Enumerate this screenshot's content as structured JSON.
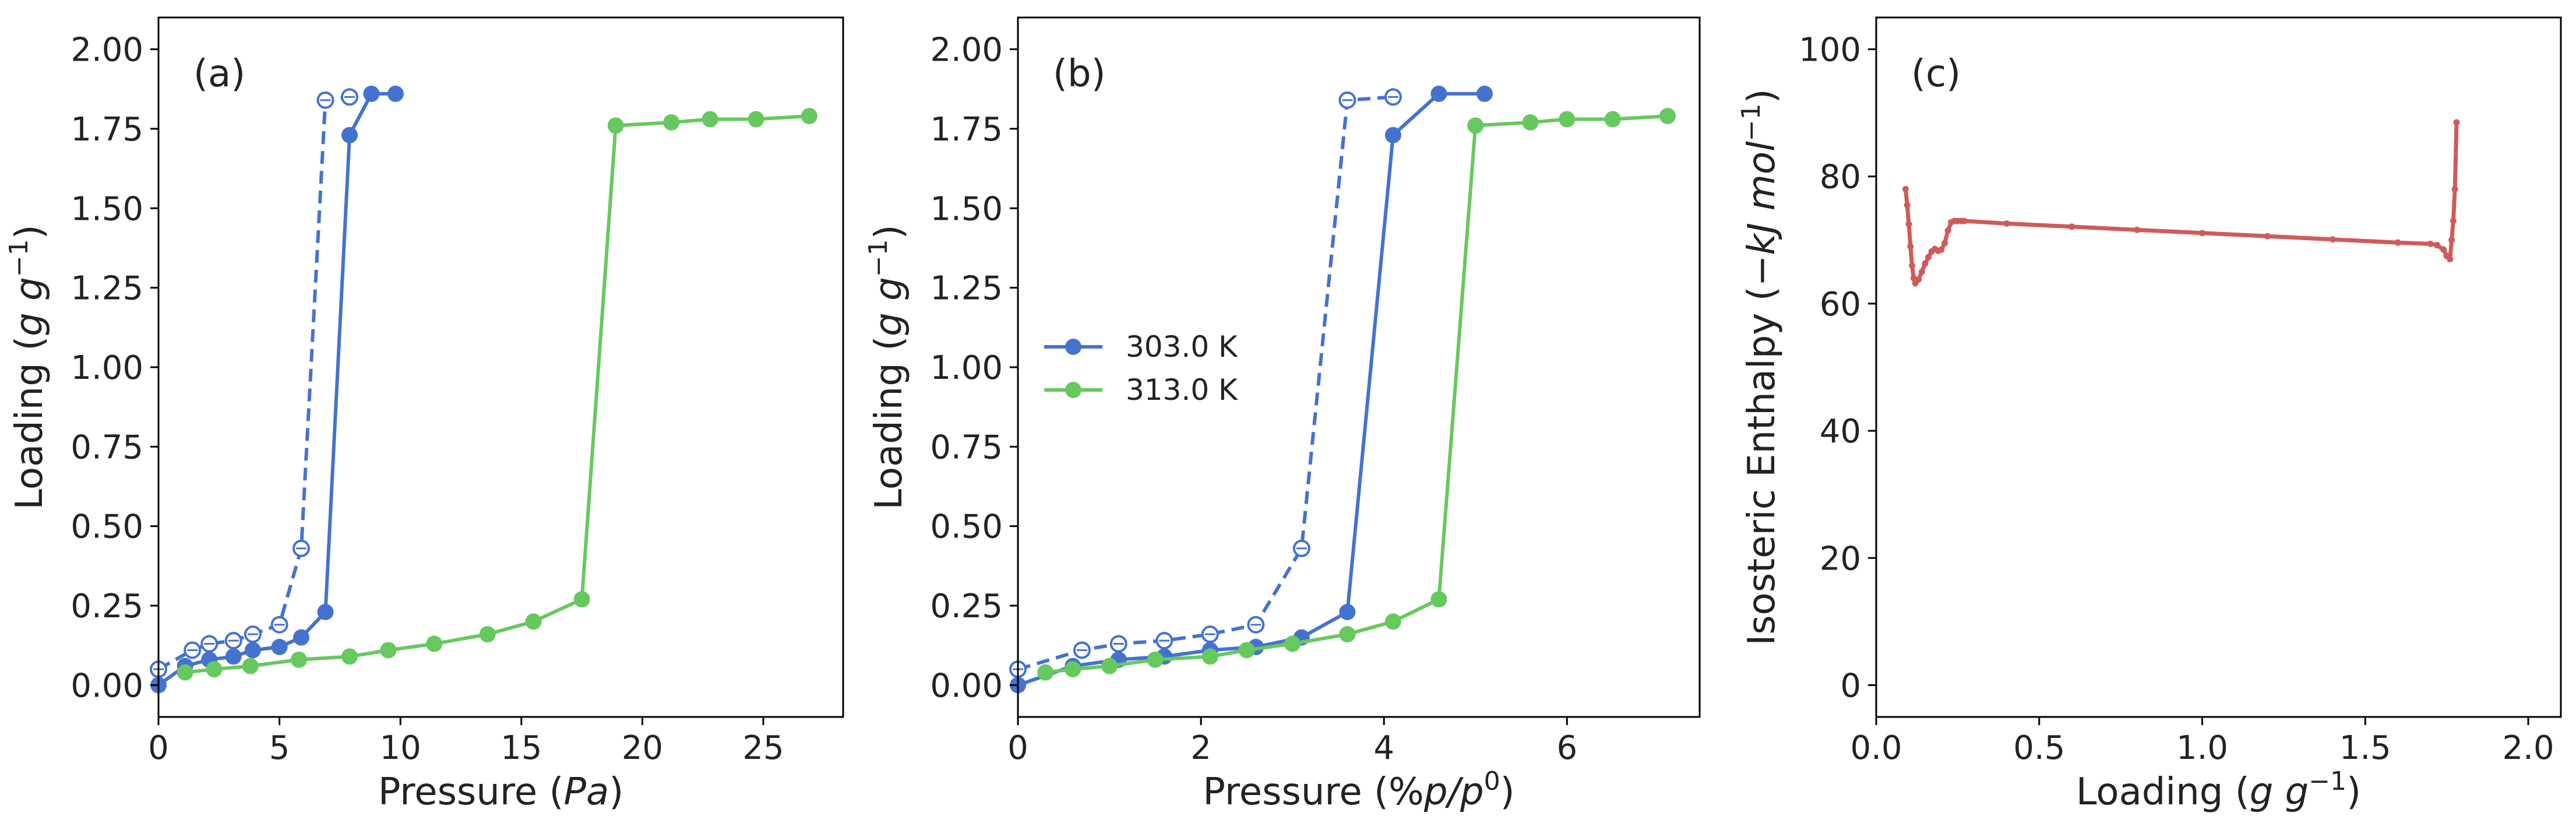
{
  "colors": {
    "blue": "#4472cf",
    "green": "#66c95e",
    "red": "#d05a5a",
    "axis": "#000000"
  },
  "chart_data": [
    {
      "type": "line",
      "panel_label": "(a)",
      "xlabel_parts": [
        "Pressure (",
        "Pa",
        ")"
      ],
      "ylabel_parts": [
        "Loading (",
        "g g",
        "−1",
        ")"
      ],
      "xlim": [
        0,
        28.3
      ],
      "ylim": [
        -0.1,
        2.1
      ],
      "xticks": [
        0,
        5,
        10,
        15,
        20,
        25
      ],
      "xtick_labels": [
        "0",
        "5",
        "10",
        "15",
        "20",
        "25"
      ],
      "yticks": [
        0,
        0.25,
        0.5,
        0.75,
        1.0,
        1.25,
        1.5,
        1.75,
        2.0
      ],
      "ytick_labels": [
        "0.00",
        "0.25",
        "0.50",
        "0.75",
        "1.00",
        "1.25",
        "1.50",
        "1.75",
        "2.00"
      ],
      "series": [
        {
          "name": "303.0 K",
          "color": "blue",
          "style": "solid",
          "marker": "filled",
          "x": [
            0.0,
            1.1,
            2.1,
            3.1,
            3.9,
            5.0,
            5.9,
            6.9,
            7.9,
            8.8,
            9.8
          ],
          "y": [
            0.0,
            0.06,
            0.08,
            0.09,
            0.11,
            0.12,
            0.15,
            0.23,
            1.73,
            1.86,
            1.86
          ]
        },
        {
          "name": "303.0 K desorption",
          "color": "blue",
          "style": "dashed",
          "marker": "open",
          "x": [
            0.0,
            1.4,
            2.1,
            3.1,
            3.9,
            5.0,
            5.9,
            6.9,
            7.9
          ],
          "y": [
            0.05,
            0.11,
            0.13,
            0.14,
            0.16,
            0.19,
            0.43,
            1.84,
            1.85
          ]
        },
        {
          "name": "313.0 K",
          "color": "green",
          "style": "solid",
          "marker": "filled",
          "x": [
            1.1,
            2.3,
            3.8,
            5.8,
            7.9,
            9.5,
            11.4,
            13.6,
            15.5,
            17.5,
            18.9,
            21.2,
            22.8,
            24.7,
            26.9
          ],
          "y": [
            0.04,
            0.05,
            0.06,
            0.08,
            0.09,
            0.11,
            0.13,
            0.16,
            0.2,
            0.27,
            1.76,
            1.77,
            1.78,
            1.78,
            1.79
          ]
        }
      ]
    },
    {
      "type": "line",
      "panel_label": "(b)",
      "xlabel_parts": [
        "Pressure (%",
        "p/p",
        "0",
        ")"
      ],
      "ylabel_parts": [
        "Loading (",
        "g g",
        "−1",
        ")"
      ],
      "xlim": [
        0,
        7.45
      ],
      "ylim": [
        -0.1,
        2.1
      ],
      "xticks": [
        0,
        2,
        4,
        6
      ],
      "xtick_labels": [
        "0",
        "2",
        "4",
        "6"
      ],
      "yticks": [
        0,
        0.25,
        0.5,
        0.75,
        1.0,
        1.25,
        1.5,
        1.75,
        2.0
      ],
      "ytick_labels": [
        "0.00",
        "0.25",
        "0.50",
        "0.75",
        "1.00",
        "1.25",
        "1.50",
        "1.75",
        "2.00"
      ],
      "legend_position": "center-left",
      "legend": [
        {
          "label": "303.0 K",
          "color": "blue"
        },
        {
          "label": "313.0 K",
          "color": "green"
        }
      ],
      "series": [
        {
          "name": "303.0 K",
          "color": "blue",
          "style": "solid",
          "marker": "filled",
          "x": [
            0.0,
            0.6,
            1.1,
            1.6,
            2.1,
            2.6,
            3.1,
            3.6,
            4.1,
            4.6,
            5.1
          ],
          "y": [
            0.0,
            0.06,
            0.08,
            0.09,
            0.11,
            0.12,
            0.15,
            0.23,
            1.73,
            1.86,
            1.86
          ]
        },
        {
          "name": "303.0 K desorption",
          "color": "blue",
          "style": "dashed",
          "marker": "open",
          "x": [
            0.0,
            0.7,
            1.1,
            1.6,
            2.1,
            2.6,
            3.1,
            3.6,
            4.1
          ],
          "y": [
            0.05,
            0.11,
            0.13,
            0.14,
            0.16,
            0.19,
            0.43,
            1.84,
            1.85
          ]
        },
        {
          "name": "313.0 K",
          "color": "green",
          "style": "solid",
          "marker": "filled",
          "x": [
            0.3,
            0.6,
            1.0,
            1.5,
            2.1,
            2.5,
            3.0,
            3.6,
            4.1,
            4.6,
            5.0,
            5.6,
            6.0,
            6.5,
            7.1
          ],
          "y": [
            0.04,
            0.05,
            0.06,
            0.08,
            0.09,
            0.11,
            0.13,
            0.16,
            0.2,
            0.27,
            1.76,
            1.77,
            1.78,
            1.78,
            1.79
          ]
        }
      ]
    },
    {
      "type": "line",
      "panel_label": "(c)",
      "xlabel_parts": [
        "Loading (",
        "g g",
        "−1",
        ")"
      ],
      "ylabel_parts": [
        "Isosteric Enthalpy (",
        "−kJ mol",
        "−1",
        ")"
      ],
      "xlim": [
        0,
        2.1
      ],
      "ylim": [
        -5,
        105
      ],
      "xticks": [
        0,
        0.5,
        1.0,
        1.5,
        2.0
      ],
      "xtick_labels": [
        "0.0",
        "0.5",
        "1.0",
        "1.5",
        "2.0"
      ],
      "yticks": [
        0,
        20,
        40,
        60,
        80,
        100
      ],
      "ytick_labels": [
        "0",
        "20",
        "40",
        "60",
        "80",
        "100"
      ],
      "series": [
        {
          "name": "",
          "color": "red",
          "style": "solid",
          "marker": "small",
          "x": [
            0.09,
            0.095,
            0.1,
            0.105,
            0.11,
            0.115,
            0.12,
            0.13,
            0.14,
            0.15,
            0.16,
            0.17,
            0.18,
            0.19,
            0.2,
            0.21,
            0.22,
            0.23,
            0.24,
            0.25,
            0.26,
            0.27,
            0.4,
            0.6,
            0.8,
            1.0,
            1.2,
            1.4,
            1.6,
            1.7,
            1.72,
            1.74,
            1.75,
            1.76,
            1.765,
            1.77,
            1.775,
            1.78
          ],
          "y": [
            78,
            75.5,
            72.5,
            69,
            66,
            64,
            63.2,
            63.8,
            65,
            66.3,
            67.3,
            68.2,
            68.6,
            68.3,
            68.5,
            69.5,
            71.5,
            72.8,
            73,
            73,
            73,
            73,
            72.6,
            72.1,
            71.6,
            71.1,
            70.6,
            70.1,
            69.6,
            69.4,
            69.2,
            68.5,
            67.5,
            67,
            70,
            73,
            78,
            88.5
          ]
        }
      ]
    }
  ]
}
